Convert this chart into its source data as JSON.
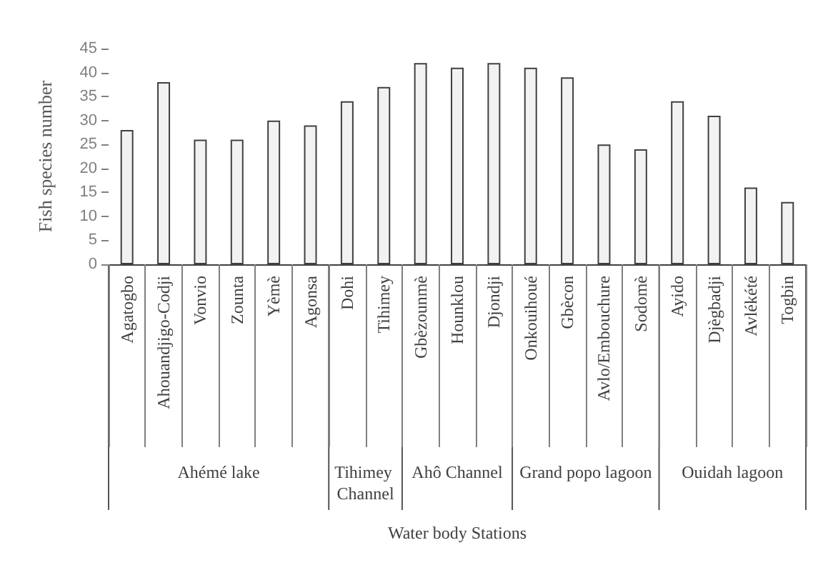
{
  "chart_data": {
    "type": "bar",
    "categories": [
      "Agatogbo",
      "Ahouandjigo-Codji",
      "Vonvio",
      "Zounta",
      "Yèmè",
      "Agonsa",
      "Dohi",
      "Tihimey",
      "Gbèzounmè",
      "Hounklou",
      "Djondji",
      "Onkouihoué",
      "Gbècon",
      "Avlo/Embouchure",
      "Sodomè",
      "Ayido",
      "Djègbadji",
      "Avlékété",
      "Togbin"
    ],
    "values": [
      28,
      38,
      26,
      26,
      30,
      29,
      34,
      37,
      42,
      41,
      42,
      41,
      39,
      25,
      24,
      34,
      31,
      16,
      13
    ],
    "color": "#f2f2f2",
    "ylabel": "Fish species number",
    "ylim": [
      0,
      45
    ],
    "yticks": [
      0,
      5,
      10,
      15,
      20,
      25,
      30,
      35,
      40,
      45
    ],
    "annotations": [
      "Ahémé lake",
      "Tihimey Channel",
      "Ahô Channel",
      "Grand popo lagoon",
      "Ouidah lagoon",
      "Water body Stations"
    ],
    "grid": false
  }
}
